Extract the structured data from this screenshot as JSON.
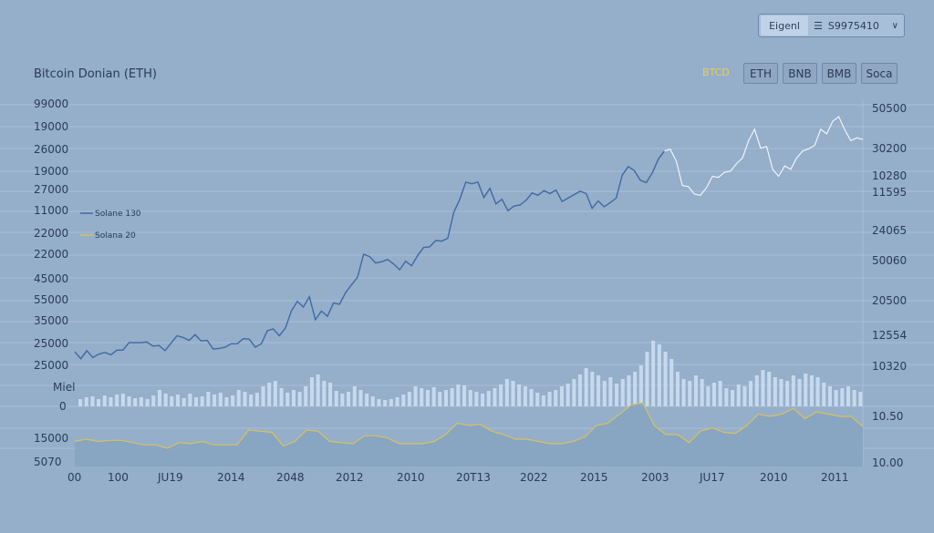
{
  "header": {
    "toggle_label": "Eigenl",
    "menu_icon": "menu-icon",
    "value": "S9975410",
    "chevron_icon": "chevron-down-icon"
  },
  "title": "Bitcoin Donian (ETH)",
  "tabs": {
    "active": "BTCD",
    "items": [
      "ETH",
      "BNB",
      "BMB",
      "Soca"
    ]
  },
  "colors": {
    "background": "#95aeca",
    "blue_line": "#3f6aa6",
    "white_line": "#eef4fb",
    "yellow_line": "#d8c25a",
    "area_fill": "#86a4c0",
    "volume_bar": "#cfe0f3"
  },
  "chart_data": {
    "type": "line",
    "title": "Bitcoin Donian (ETH)",
    "legend": [
      {
        "name": "Solane 130",
        "color": "#3f6aa6"
      },
      {
        "name": "Solana 20",
        "color": "#d8c25a"
      }
    ],
    "legend_position": "left",
    "grid": true,
    "left_axis_labels": [
      "99000",
      "19000",
      "26000",
      "19000",
      "27000",
      "11000",
      "22000",
      "22000",
      "45000",
      "55000",
      "35000",
      "25000",
      "25000",
      "Miel",
      "0",
      "15000",
      "5070"
    ],
    "right_axis_labels": [
      "50500",
      "30200",
      "10280",
      "11595",
      "24065",
      "50060",
      "20500",
      "12554",
      "10320",
      "10.50",
      "10.00"
    ],
    "x_axis_labels": [
      "00",
      "100",
      "JU19",
      "2014",
      "2048",
      "2012",
      "2010",
      "20T13",
      "2022",
      "2015",
      "2003",
      "JU17",
      "2010",
      "2011"
    ],
    "price_series": [
      {
        "name": "Solane 130",
        "values": [
          22,
          10,
          24,
          12,
          18,
          21,
          17,
          25,
          25,
          38,
          38,
          38,
          39,
          32,
          33,
          24,
          37,
          50,
          47,
          42,
          52,
          41,
          42,
          27,
          28,
          30,
          36,
          36,
          45,
          44,
          30,
          36,
          59,
          62,
          50,
          63,
          93,
          110,
          100,
          118,
          78,
          93,
          84,
          107,
          105,
          125,
          139,
          152,
          192,
          188,
          177,
          179,
          183,
          175,
          165,
          180,
          172,
          190,
          204,
          205,
          216,
          215,
          220,
          265,
          288,
          318,
          315,
          318,
          291,
          307,
          280,
          288,
          268,
          276,
          278,
          286,
          299,
          295,
          303,
          298,
          304,
          284,
          290,
          296,
          302,
          298,
          272,
          285,
          275,
          282,
          290,
          330,
          345,
          338,
          321,
          317,
          334,
          358,
          372
        ]
      },
      {
        "name": "white",
        "values": [
          372,
          375,
          354,
          312,
          310,
          297,
          295,
          308,
          328,
          326,
          335,
          337,
          350,
          360,
          390,
          410,
          377,
          380,
          340,
          328,
          346,
          340,
          360,
          372,
          376,
          382,
          410,
          402,
          424,
          432,
          409,
          390,
          395,
          392
        ]
      }
    ],
    "volume_values": [
      8,
      10,
      11,
      8,
      12,
      10,
      13,
      14,
      11,
      9,
      10,
      8,
      12,
      18,
      14,
      11,
      13,
      9,
      14,
      10,
      11,
      16,
      13,
      15,
      10,
      12,
      18,
      16,
      13,
      15,
      22,
      26,
      28,
      20,
      15,
      18,
      16,
      22,
      32,
      35,
      28,
      26,
      17,
      14,
      16,
      22,
      18,
      14,
      11,
      8,
      7,
      8,
      10,
      13,
      16,
      22,
      20,
      18,
      21,
      16,
      18,
      20,
      24,
      23,
      18,
      16,
      14,
      17,
      20,
      24,
      30,
      28,
      24,
      22,
      19,
      15,
      12,
      16,
      18,
      22,
      25,
      30,
      35,
      42,
      38,
      34,
      28,
      32,
      25,
      30,
      34,
      38,
      45,
      60,
      72,
      68,
      60,
      52,
      38,
      30,
      28,
      34,
      30,
      22,
      26,
      28,
      20,
      18,
      24,
      22,
      28,
      34,
      40,
      38,
      32,
      30,
      28,
      34,
      30,
      36,
      34,
      32,
      26,
      22,
      18,
      20,
      22,
      18,
      16
    ],
    "area_series": {
      "name": "Solana 20",
      "values": [
        6,
        8,
        6,
        7,
        7,
        5,
        3,
        3,
        0,
        5,
        4,
        6,
        3,
        3,
        3,
        16,
        15,
        14,
        2,
        6,
        16,
        15,
        6,
        5,
        4,
        11,
        11,
        9,
        4,
        4,
        4,
        6,
        12,
        22,
        20,
        21,
        15,
        12,
        8,
        8,
        6,
        4,
        4,
        6,
        10,
        20,
        22,
        30,
        38,
        40,
        20,
        12,
        12,
        5,
        15,
        18,
        14,
        13,
        20,
        30,
        28,
        30,
        35,
        26,
        32,
        30,
        28,
        28,
        19
      ]
    }
  }
}
